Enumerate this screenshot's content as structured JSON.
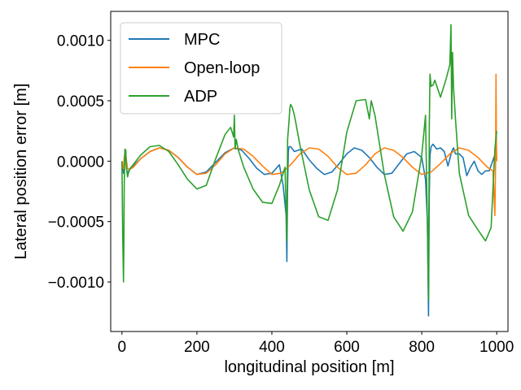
{
  "chart_data": {
    "type": "line",
    "title": "",
    "xlabel": "longitudinal position [m]",
    "ylabel": "Lateral position error [m]",
    "xlim": [
      -30,
      1030
    ],
    "ylim": [
      -0.00141,
      0.00124
    ],
    "xticks": [
      0,
      200,
      400,
      600,
      800,
      1000
    ],
    "xtick_labels": [
      "0",
      "200",
      "400",
      "600",
      "800",
      "1000"
    ],
    "yticks": [
      -0.001,
      -0.0005,
      0.0,
      0.0005,
      0.001
    ],
    "ytick_labels": [
      "−0.0010",
      "−0.0005",
      "0.0000",
      "0.0005",
      "0.0010"
    ],
    "grid": false,
    "legend_position": "top-left",
    "series": [
      {
        "name": "MPC",
        "color": "#1f77b4",
        "x": [
          0,
          2,
          4,
          5,
          6,
          8,
          10,
          12,
          15,
          18,
          22,
          30,
          50,
          75,
          100,
          125,
          150,
          175,
          200,
          225,
          250,
          275,
          300,
          320,
          340,
          360,
          380,
          400,
          420,
          430,
          438,
          440,
          442,
          444,
          446,
          450,
          460,
          480,
          500,
          520,
          540,
          560,
          580,
          600,
          620,
          640,
          660,
          680,
          700,
          720,
          740,
          760,
          780,
          800,
          810,
          815,
          818,
          820,
          822,
          825,
          830,
          840,
          850,
          860,
          870,
          880,
          885,
          890,
          900,
          910,
          920,
          930,
          940,
          950,
          960,
          970,
          980,
          990,
          995
        ],
        "y": [
          0.0,
          -6e-05,
          -0.0001,
          -8e-05,
          -6e-05,
          8e-05,
          9e-05,
          -5e-05,
          -0.00012,
          -8e-05,
          -6e-05,
          -4e-05,
          2e-05,
          8e-05,
          0.00011,
          9e-05,
          3e-05,
          -5e-05,
          -0.00011,
          -9e-05,
          -1e-05,
          7e-05,
          0.00011,
          9e-05,
          2e-05,
          -6e-05,
          -0.00011,
          -0.0001,
          -3e-05,
          -0.0002,
          -0.00045,
          -0.00083,
          -0.0002,
          8e-05,
          0.00012,
          0.00012,
          8e-05,
          0.0001,
          1e-05,
          -6e-05,
          -0.00011,
          -9e-05,
          -2e-05,
          6e-05,
          0.00011,
          9e-05,
          3e-05,
          -5e-05,
          -0.00011,
          -0.0001,
          -2e-05,
          6e-05,
          8e-05,
          3e-05,
          -0.00015,
          -0.0005,
          -0.00128,
          -0.0003,
          5e-05,
          0.00012,
          0.00014,
          0.0001,
          0.00011,
          8e-05,
          -4e-05,
          8e-05,
          0.00011,
          6e-05,
          6e-05,
          3e-05,
          -0.00012,
          -5e-05,
          0.0,
          -8e-05,
          -0.00011,
          -8e-05,
          -8e-05,
          1e-05,
          5e-05
        ]
      },
      {
        "name": "Open-loop",
        "color": "#ff7f0e",
        "x": [
          0,
          2,
          4,
          6,
          8,
          10,
          15,
          20,
          30,
          50,
          75,
          100,
          125,
          150,
          175,
          200,
          225,
          250,
          275,
          300,
          325,
          350,
          375,
          400,
          425,
          450,
          475,
          500,
          525,
          550,
          575,
          600,
          625,
          650,
          675,
          700,
          725,
          750,
          775,
          800,
          825,
          850,
          875,
          900,
          925,
          950,
          975,
          990,
          995,
          997,
          998,
          999,
          1000
        ],
        "y": [
          0.0,
          -4e-05,
          -6e-05,
          3e-05,
          7e-05,
          5e-05,
          -6e-05,
          -7e-05,
          -5e-05,
          2e-05,
          8e-05,
          0.00011,
          9e-05,
          3e-05,
          -5e-05,
          -0.00011,
          -0.0001,
          -3e-05,
          6e-05,
          0.00011,
          0.0001,
          4e-05,
          -4e-05,
          -0.00011,
          -0.0001,
          -3e-05,
          6e-05,
          0.00011,
          0.0001,
          4e-05,
          -5e-05,
          -0.00011,
          -0.0001,
          -3e-05,
          6e-05,
          0.00011,
          9e-05,
          3e-05,
          -5e-05,
          -0.00011,
          -9e-05,
          -2e-05,
          6e-05,
          0.00011,
          9e-05,
          3e-05,
          -5e-05,
          -8e-05,
          -0.00045,
          0.0,
          0.00072,
          0.0002,
          0.0
        ]
      },
      {
        "name": "ADP",
        "color": "#2ca02c",
        "x": [
          0,
          2,
          4,
          5,
          6,
          8,
          10,
          12,
          15,
          18,
          22,
          30,
          50,
          75,
          100,
          125,
          150,
          175,
          200,
          225,
          250,
          275,
          290,
          298,
          300,
          302,
          305,
          310,
          325,
          350,
          375,
          400,
          420,
          435,
          440,
          442,
          445,
          448,
          450,
          455,
          460,
          465,
          475,
          500,
          525,
          550,
          575,
          600,
          625,
          650,
          660,
          665,
          675,
          700,
          725,
          750,
          775,
          800,
          810,
          815,
          818,
          820,
          822,
          825,
          830,
          835,
          850,
          865,
          875,
          878,
          880,
          882,
          885,
          890,
          900,
          925,
          950,
          970,
          985,
          995,
          1000
        ],
        "y": [
          0.0,
          -0.0006,
          -0.001,
          -0.00075,
          -0.0002,
          0.0001,
          9e-05,
          -5e-05,
          -0.00013,
          -9e-05,
          -6e-05,
          -3e-05,
          5e-05,
          0.00012,
          0.00013,
          8e-05,
          -3e-05,
          -0.00015,
          -0.00023,
          -0.0002,
          2e-05,
          0.00022,
          0.00028,
          0.0002,
          0.00038,
          0.0001,
          0.00018,
          0.0001,
          -5e-05,
          -0.00023,
          -0.00034,
          -0.00035,
          -0.0002,
          -5e-05,
          -0.00066,
          0.00018,
          0.0003,
          0.00044,
          0.00047,
          0.00044,
          0.00038,
          0.0003,
          0.00013,
          -0.00024,
          -0.00046,
          -0.00049,
          -0.00024,
          0.00024,
          0.0005,
          0.00051,
          0.00035,
          0.0005,
          0.00038,
          -0.00011,
          -0.00046,
          -0.00058,
          -0.00042,
          5e-05,
          0.00038,
          -0.0005,
          -0.00115,
          0.00025,
          0.00072,
          0.00062,
          0.00063,
          0.00067,
          0.00053,
          0.00068,
          0.0008,
          0.00113,
          0.00035,
          0.0009,
          0.0006,
          0.00035,
          -0.0001,
          -0.00045,
          -0.00057,
          -0.00066,
          -0.00055,
          0.0001,
          0.00025
        ]
      }
    ]
  }
}
